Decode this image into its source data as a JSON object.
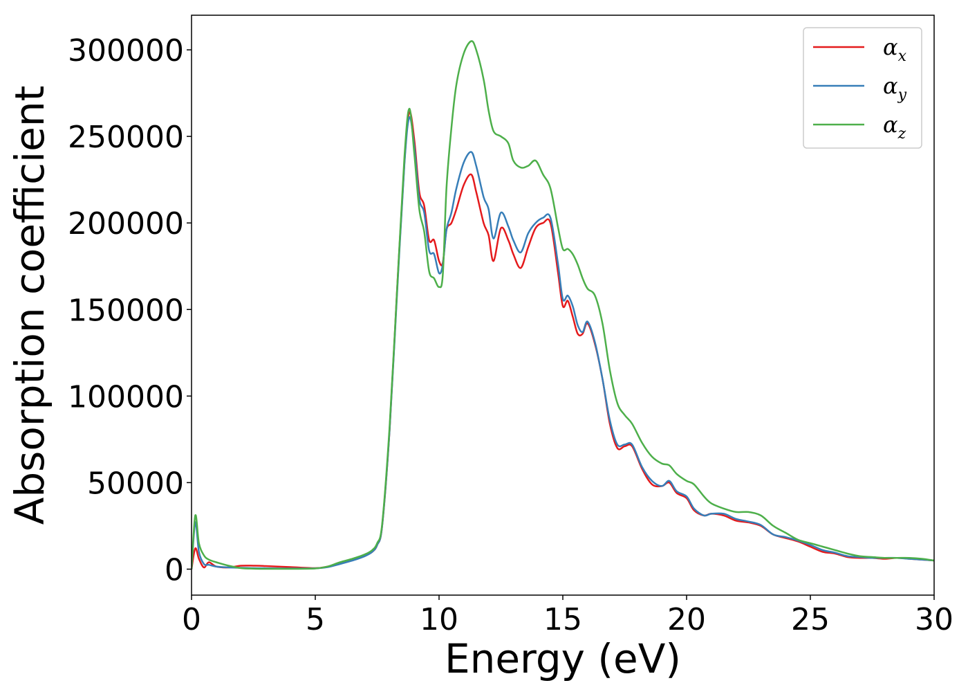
{
  "chart_data": {
    "type": "line",
    "xlabel": "Energy (eV)",
    "ylabel": "Absorption coefficient",
    "xlim": [
      0,
      30
    ],
    "ylim": [
      -15000,
      320000
    ],
    "xticks": [
      0,
      5,
      10,
      15,
      20,
      25,
      30
    ],
    "xtick_labels": [
      "0",
      "5",
      "10",
      "15",
      "20",
      "25",
      "30"
    ],
    "yticks": [
      0,
      50000,
      100000,
      150000,
      200000,
      250000,
      300000
    ],
    "ytick_labels": [
      "0",
      "50000",
      "100000",
      "150000",
      "200000",
      "250000",
      "300000"
    ],
    "grid": false,
    "legend_position": "top-right",
    "series": [
      {
        "name": "α",
        "subscript": "x",
        "color": "#e41a1c",
        "x": [
          0,
          0.15,
          0.3,
          0.5,
          0.7,
          1.0,
          1.5,
          2.0,
          2.5,
          3.0,
          4.0,
          5.0,
          5.5,
          6.0,
          6.5,
          7.0,
          7.3,
          7.5,
          7.7,
          8.0,
          8.3,
          8.6,
          8.8,
          9.0,
          9.2,
          9.4,
          9.6,
          9.8,
          10.0,
          10.15,
          10.3,
          10.5,
          10.7,
          11.0,
          11.3,
          11.5,
          11.8,
          12.0,
          12.2,
          12.5,
          12.8,
          13.0,
          13.3,
          13.6,
          13.9,
          14.2,
          14.5,
          14.8,
          15.0,
          15.2,
          15.4,
          15.6,
          15.8,
          16.0,
          16.3,
          16.6,
          16.9,
          17.2,
          17.5,
          17.8,
          18.2,
          18.6,
          19.0,
          19.3,
          19.6,
          20.0,
          20.3,
          20.7,
          21.0,
          21.5,
          22.0,
          22.5,
          23.0,
          23.5,
          24.0,
          24.5,
          25.0,
          25.5,
          26.0,
          26.5,
          27.0,
          27.5,
          28.0,
          28.5,
          29.0,
          29.5,
          30.0
        ],
        "values": [
          0,
          12000,
          6000,
          1000,
          4000,
          1500,
          1000,
          2000,
          2000,
          1800,
          1200,
          600,
          1500,
          3500,
          5500,
          8000,
          10000,
          14000,
          25000,
          80000,
          160000,
          235000,
          264000,
          248000,
          218000,
          210000,
          190000,
          190000,
          178000,
          177000,
          196000,
          200000,
          208000,
          222000,
          228000,
          218000,
          200000,
          193000,
          178000,
          197000,
          190000,
          182000,
          174000,
          186000,
          197000,
          200000,
          200000,
          172000,
          152000,
          155000,
          146000,
          136000,
          136000,
          142000,
          130000,
          110000,
          84000,
          70000,
          71000,
          71000,
          58000,
          49000,
          48000,
          50000,
          44000,
          41000,
          34000,
          31000,
          32000,
          31000,
          28000,
          27000,
          25000,
          20000,
          18000,
          16000,
          13000,
          10000,
          9000,
          7000,
          6500,
          6500,
          6000,
          6500,
          6000,
          5500,
          5000
        ]
      },
      {
        "name": "α",
        "subscript": "y",
        "color": "#377eb8",
        "x": [
          0,
          0.15,
          0.3,
          0.5,
          0.7,
          1.0,
          1.5,
          2.0,
          2.5,
          3.0,
          4.0,
          5.0,
          5.5,
          6.0,
          6.5,
          7.0,
          7.3,
          7.5,
          7.7,
          8.0,
          8.3,
          8.6,
          8.8,
          9.0,
          9.2,
          9.4,
          9.6,
          9.8,
          10.0,
          10.15,
          10.3,
          10.5,
          10.7,
          11.0,
          11.3,
          11.5,
          11.8,
          12.0,
          12.2,
          12.5,
          12.8,
          13.0,
          13.3,
          13.6,
          13.9,
          14.2,
          14.5,
          14.8,
          15.0,
          15.2,
          15.4,
          15.6,
          15.8,
          16.0,
          16.3,
          16.6,
          16.9,
          17.2,
          17.5,
          17.8,
          18.2,
          18.6,
          19.0,
          19.3,
          19.6,
          20.0,
          20.3,
          20.7,
          21.0,
          21.5,
          22.0,
          22.5,
          23.0,
          23.5,
          24.0,
          24.5,
          25.0,
          25.5,
          26.0,
          26.5,
          27.0,
          27.5,
          28.0,
          28.5,
          29.0,
          29.5,
          30.0
        ],
        "values": [
          0,
          27000,
          10000,
          3000,
          2500,
          1500,
          1000,
          800,
          600,
          500,
          400,
          500,
          1200,
          3000,
          5000,
          7500,
          10000,
          14000,
          25000,
          80000,
          158000,
          234000,
          261000,
          244000,
          214000,
          206000,
          184000,
          182000,
          171000,
          176000,
          196000,
          206000,
          220000,
          235000,
          241000,
          233000,
          215000,
          208000,
          191000,
          206000,
          198000,
          190000,
          183000,
          194000,
          200000,
          203000,
          203000,
          177000,
          156000,
          158000,
          152000,
          141000,
          137000,
          143000,
          131000,
          110000,
          86000,
          72000,
          72000,
          72000,
          59000,
          51000,
          48000,
          51000,
          45000,
          42000,
          35000,
          31000,
          32000,
          32000,
          29000,
          27500,
          25500,
          20000,
          18500,
          16500,
          14000,
          11000,
          9500,
          7500,
          7000,
          6500,
          6500,
          6500,
          6000,
          5500,
          5000
        ]
      },
      {
        "name": "α",
        "subscript": "z",
        "color": "#4daf4a",
        "x": [
          0,
          0.15,
          0.3,
          0.5,
          0.7,
          1.0,
          1.5,
          2.0,
          2.5,
          3.0,
          4.0,
          5.0,
          5.5,
          6.0,
          6.5,
          7.0,
          7.3,
          7.5,
          7.7,
          8.0,
          8.3,
          8.6,
          8.8,
          9.0,
          9.2,
          9.4,
          9.6,
          9.8,
          10.0,
          10.15,
          10.3,
          10.5,
          10.7,
          11.0,
          11.3,
          11.5,
          11.8,
          12.0,
          12.2,
          12.5,
          12.8,
          13.0,
          13.3,
          13.6,
          13.9,
          14.2,
          14.5,
          14.8,
          15.0,
          15.2,
          15.4,
          15.6,
          15.8,
          16.0,
          16.3,
          16.6,
          16.9,
          17.2,
          17.5,
          17.8,
          18.2,
          18.6,
          19.0,
          19.3,
          19.6,
          20.0,
          20.3,
          20.7,
          21.0,
          21.5,
          22.0,
          22.5,
          23.0,
          23.5,
          24.0,
          24.5,
          25.0,
          25.5,
          26.0,
          26.5,
          27.0,
          27.5,
          28.0,
          28.5,
          29.0,
          29.5,
          30.0
        ],
        "values": [
          0,
          31000,
          15000,
          8000,
          5500,
          4000,
          2000,
          600,
          300,
          200,
          200,
          400,
          1500,
          4000,
          6000,
          8500,
          11000,
          15000,
          26000,
          82000,
          160000,
          238000,
          266000,
          240000,
          208000,
          195000,
          172000,
          168000,
          163000,
          170000,
          220000,
          255000,
          280000,
          298000,
          305000,
          300000,
          283000,
          265000,
          253000,
          250000,
          246000,
          236000,
          232000,
          233000,
          236000,
          228000,
          220000,
          198000,
          185000,
          185000,
          182000,
          176000,
          168000,
          162000,
          158000,
          142000,
          115000,
          96000,
          89000,
          84000,
          73000,
          65000,
          61000,
          60000,
          55000,
          51000,
          49000,
          42000,
          38000,
          35000,
          33000,
          33000,
          31000,
          25000,
          21000,
          17000,
          15000,
          13000,
          11000,
          9000,
          7500,
          7000,
          6500,
          6500,
          6500,
          6000,
          5000
        ]
      }
    ]
  }
}
